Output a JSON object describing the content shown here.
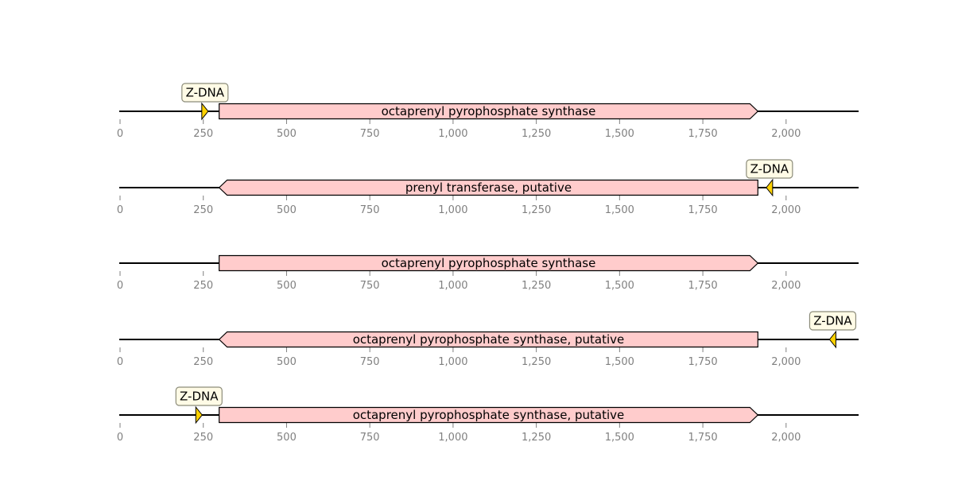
{
  "chart_data": {
    "type": "diagram",
    "axis": {
      "ticks": [
        0,
        250,
        500,
        750,
        1000,
        1250,
        1500,
        1750,
        2000
      ],
      "tick_labels": [
        "0",
        "250",
        "500",
        "750",
        "1,000",
        "1,250",
        "1,500",
        "1,750",
        "2,000"
      ],
      "range": [
        0,
        2220
      ]
    },
    "tracks": [
      {
        "gene": {
          "start": 300,
          "end": 1920,
          "strand": 1,
          "label": "octaprenyl pyrophosphate synthase"
        },
        "zdna": [
          {
            "position": 255,
            "strand": 1,
            "label": "Z-DNA"
          }
        ]
      },
      {
        "gene": {
          "start": 300,
          "end": 1920,
          "strand": -1,
          "label": "prenyl transferase, putative"
        },
        "zdna": [
          {
            "position": 1950,
            "strand": -1,
            "label": "Z-DNA"
          }
        ]
      },
      {
        "gene": {
          "start": 300,
          "end": 1920,
          "strand": 1,
          "label": "octaprenyl pyrophosphate synthase"
        },
        "zdna": []
      },
      {
        "gene": {
          "start": 300,
          "end": 1920,
          "strand": -1,
          "label": "octaprenyl pyrophosphate synthase, putative"
        },
        "zdna": [
          {
            "position": 2140,
            "strand": -1,
            "label": "Z-DNA"
          }
        ]
      },
      {
        "gene": {
          "start": 300,
          "end": 1920,
          "strand": 1,
          "label": "octaprenyl pyrophosphate synthase, putative"
        },
        "zdna": [
          {
            "position": 237,
            "strand": 1,
            "label": "Z-DNA"
          }
        ]
      }
    ],
    "colors": {
      "gene_fill": "#ffcccc",
      "zdna_fill": "#ffd200",
      "zdna_label_bg": "#fffbe6",
      "tick_color": "#808080"
    }
  }
}
